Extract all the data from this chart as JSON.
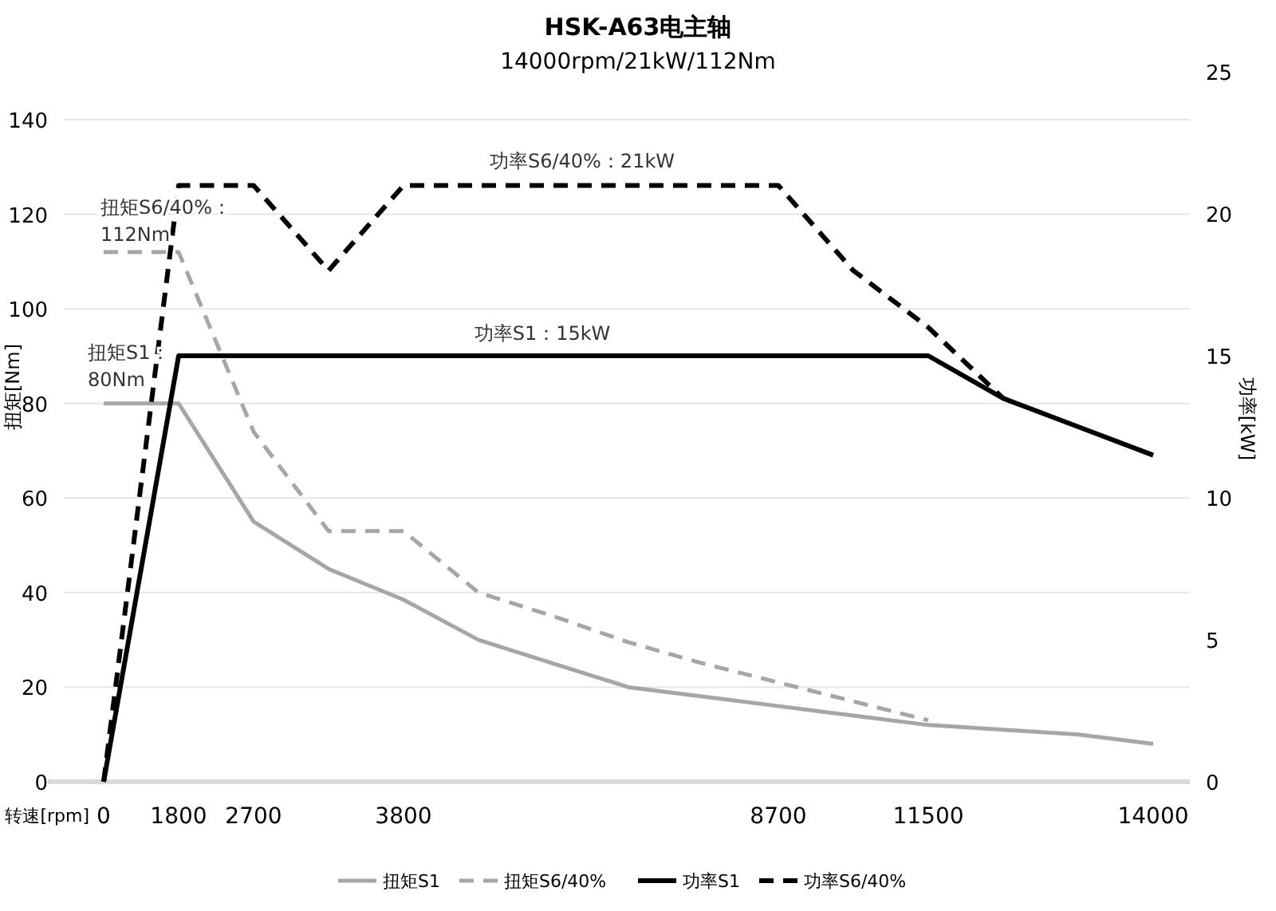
{
  "chart_data": {
    "type": "line",
    "title": "HSK-A63电主轴",
    "subtitle": "14000rpm/21kW/112Nm",
    "xlabel": "转速[rpm]",
    "ylabel": "扭矩[Nm]",
    "y2label": "功率[kW]",
    "categories": [
      "0",
      "1800",
      "2700",
      null,
      "3800",
      null,
      null,
      null,
      null,
      "8700",
      null,
      "11500",
      null,
      null,
      "14000"
    ],
    "series": [
      {
        "name": "扭矩S1",
        "color": "#a6a6a6",
        "line_style": "solid",
        "values": [
          80,
          80,
          55,
          45,
          38.5,
          30,
          25,
          20,
          18,
          16,
          14,
          12,
          11,
          10,
          8
        ]
      },
      {
        "name": "扭矩S6/40%",
        "color": "#a6a6a6",
        "line_style": "dashed",
        "values": [
          112,
          112,
          74,
          53,
          53,
          40,
          35,
          29.5,
          25,
          21,
          17,
          13,
          null,
          null,
          null
        ]
      },
      {
        "name": "功率S1",
        "color": "#000000",
        "line_style": "solid",
        "axis": "y2",
        "values": [
          0,
          15,
          15,
          15,
          15,
          15,
          15,
          15,
          15,
          15,
          15,
          15,
          13.5,
          12.5,
          11.5
        ]
      },
      {
        "name": "功率S6/40%",
        "color": "#000000",
        "line_style": "dashed",
        "axis": "y2",
        "values": [
          0,
          21,
          21,
          18,
          21,
          21,
          21,
          21,
          21,
          21,
          18,
          16,
          13.5,
          null,
          null
        ]
      }
    ],
    "ylim": [
      0,
      140
    ],
    "yticks": [
      0,
      20,
      40,
      60,
      80,
      100,
      120,
      140
    ],
    "y2lim": [
      0,
      25
    ],
    "y2ticks": [
      0,
      5,
      10,
      15,
      20,
      25
    ],
    "grid": "y",
    "legend": "bottom",
    "marker": "none",
    "annotations": [
      "功率S6/40%：21kW",
      "功率S1：15kW",
      "扭矩S6/40%：\n112Nm",
      "扭矩S1：\n80Nm"
    ]
  }
}
